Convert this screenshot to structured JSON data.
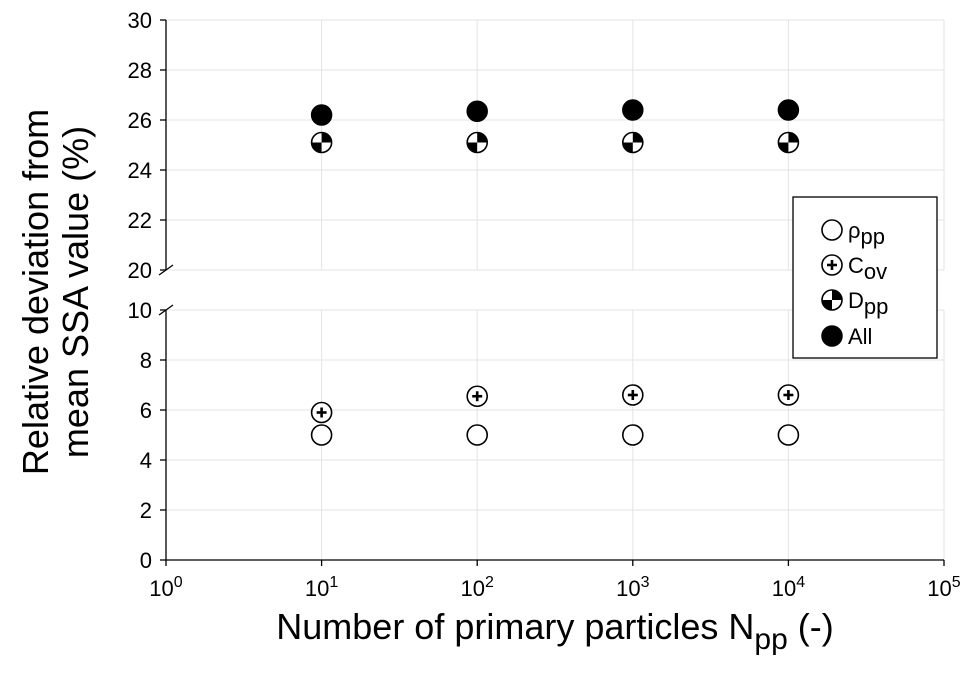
{
  "chart_data": {
    "type": "scatter",
    "xlabel": "Number of primary particles N",
    "xlabel_sub": "pp",
    "xlabel_suffix": " (-)",
    "ylabel_line1": "Relative deviation from",
    "ylabel_line2": "mean SSA value (%)",
    "x_scale": "log",
    "xlim": [
      1,
      100000
    ],
    "x_ticks": [
      {
        "base": "10",
        "exp": "0",
        "value": 1
      },
      {
        "base": "10",
        "exp": "1",
        "value": 10
      },
      {
        "base": "10",
        "exp": "2",
        "value": 100
      },
      {
        "base": "10",
        "exp": "3",
        "value": 1000
      },
      {
        "base": "10",
        "exp": "4",
        "value": 10000
      },
      {
        "base": "10",
        "exp": "5",
        "value": 100000
      }
    ],
    "y_axis_broken": true,
    "y_segments": [
      {
        "range": [
          0,
          10
        ],
        "ticks": [
          "0",
          "2",
          "4",
          "6",
          "8",
          "10"
        ]
      },
      {
        "range": [
          20,
          30
        ],
        "ticks": [
          "20",
          "22",
          "24",
          "26",
          "28",
          "30"
        ]
      }
    ],
    "grid": true,
    "legend_position": "right",
    "x": [
      10,
      100,
      1000,
      10000
    ],
    "series": [
      {
        "name": "ρ",
        "name_sub": "pp",
        "marker": "open-circle",
        "values": [
          5.0,
          5.0,
          5.0,
          5.0
        ]
      },
      {
        "name": "C",
        "name_sub": "ov",
        "marker": "circle-plus",
        "values": [
          5.9,
          6.55,
          6.6,
          6.6
        ]
      },
      {
        "name": "D",
        "name_sub": "pp",
        "marker": "quarter-filled-circle",
        "values": [
          25.1,
          25.1,
          25.1,
          25.1
        ]
      },
      {
        "name": "All",
        "name_sub": "",
        "marker": "filled-circle",
        "values": [
          26.2,
          26.35,
          26.4,
          26.4
        ]
      }
    ]
  }
}
